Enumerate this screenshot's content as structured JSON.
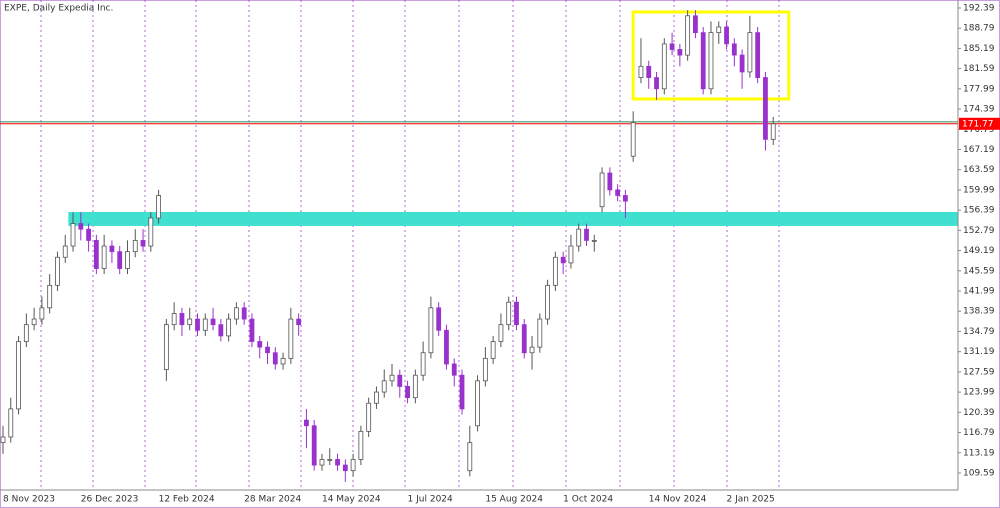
{
  "chart_data": {
    "type": "candlestick",
    "title": "EXPE, Daily  Expedia Inc.",
    "up_color": "#555555",
    "down_color": "#9932cc",
    "categories": [
      "8 Nov 2023",
      null,
      null,
      null,
      null,
      null,
      null,
      null,
      null,
      null,
      "26 Dec 2023",
      null,
      null,
      null,
      null,
      null,
      null,
      null,
      null,
      null,
      "12 Feb 2024",
      null,
      null,
      null,
      null,
      null,
      null,
      null,
      null,
      null,
      null,
      "28 Mar 2024",
      null,
      null,
      null,
      null,
      null,
      null,
      null,
      null,
      null,
      "14 May 2024",
      null,
      null,
      null,
      null,
      null,
      null,
      null,
      null,
      null,
      null,
      "1 Jul 2024",
      null,
      null,
      null,
      null,
      null,
      null,
      null,
      null,
      null,
      "15 Aug 2024",
      null,
      null,
      null,
      null,
      null,
      null,
      null,
      null,
      null,
      "1 Oct 2024",
      null,
      null,
      null,
      null,
      null,
      null,
      null,
      null,
      null,
      null,
      "14 Nov 2024",
      null,
      null,
      null,
      null,
      null,
      null,
      null,
      null,
      null,
      "2 Jan 2025",
      null,
      null,
      null,
      null,
      null,
      null
    ],
    "open": [
      115,
      116,
      121,
      133,
      136,
      137,
      139,
      143,
      148,
      150,
      154,
      153,
      151,
      146,
      150,
      149,
      146,
      149,
      151,
      150,
      155,
      128,
      136,
      138,
      136,
      137,
      135,
      137,
      136,
      134,
      137,
      139,
      137,
      133,
      132,
      131,
      129,
      130,
      137,
      119,
      118,
      111,
      112,
      112,
      111,
      110,
      112,
      117,
      122,
      124,
      126,
      127,
      125,
      123,
      127,
      131,
      139,
      135,
      129,
      127,
      110,
      118,
      126,
      130,
      133,
      136,
      140,
      136,
      131,
      132,
      137,
      143,
      148,
      147,
      150,
      153,
      151,
      157,
      163,
      160,
      159,
      166,
      180,
      182,
      180,
      178,
      186,
      185,
      184,
      191,
      188,
      178,
      188,
      189,
      186,
      184,
      181,
      188,
      180,
      169
    ],
    "high": [
      118,
      123,
      134,
      138,
      139,
      141,
      145,
      149,
      152,
      156,
      156,
      154,
      152,
      152,
      151,
      150,
      151,
      153,
      153,
      156,
      160,
      137,
      140,
      139,
      139,
      138,
      138,
      139,
      137,
      138,
      140,
      140,
      138,
      134,
      133,
      132,
      131,
      139,
      138,
      121,
      119,
      113,
      114,
      113,
      112,
      113,
      118,
      123,
      125,
      128,
      129,
      128,
      126,
      128,
      133,
      141,
      140,
      136,
      130,
      128,
      118,
      127,
      132,
      134,
      138,
      141,
      141,
      137,
      134,
      138,
      144,
      149,
      149,
      152,
      154,
      154,
      152,
      164,
      164,
      161,
      160,
      174,
      187,
      183,
      181,
      187,
      188,
      186,
      192,
      192,
      189,
      190,
      190,
      190,
      187,
      185,
      191,
      189,
      181,
      173
    ],
    "low": [
      113,
      115,
      120,
      132,
      135,
      136,
      138,
      142,
      147,
      149,
      151,
      149,
      145,
      145,
      147,
      145,
      145,
      148,
      149,
      149,
      154,
      126,
      135,
      134,
      135,
      134,
      134,
      135,
      133,
      133,
      136,
      136,
      132,
      130,
      129,
      128,
      128,
      129,
      134,
      114,
      110,
      110,
      111,
      110,
      108,
      109,
      111,
      116,
      121,
      123,
      125,
      123,
      122,
      122,
      126,
      130,
      134,
      128,
      125,
      120,
      109,
      117,
      125,
      129,
      132,
      135,
      135,
      130,
      128,
      131,
      136,
      142,
      145,
      146,
      149,
      150,
      149,
      156,
      159,
      158,
      155,
      165,
      179,
      178,
      176,
      177,
      184,
      182,
      183,
      187,
      177,
      177,
      186,
      185,
      182,
      178,
      180,
      179,
      167,
      168
    ],
    "close": [
      116,
      121,
      133,
      136,
      137,
      139,
      143,
      148,
      150,
      154,
      153,
      151,
      146,
      150,
      149,
      146,
      149,
      151,
      150,
      155,
      159,
      136,
      138,
      136,
      137,
      135,
      137,
      136,
      134,
      137,
      139,
      137,
      133,
      132,
      131,
      129,
      130,
      137,
      136,
      118,
      111,
      112,
      112,
      111,
      110,
      112,
      117,
      122,
      124,
      126,
      127,
      125,
      123,
      127,
      131,
      139,
      135,
      129,
      127,
      121,
      115,
      126,
      130,
      133,
      136,
      140,
      136,
      131,
      132,
      137,
      143,
      148,
      147,
      150,
      153,
      151,
      151,
      163,
      160,
      159,
      158,
      172,
      182,
      180,
      178,
      186,
      185,
      184,
      191,
      188,
      178,
      188,
      189,
      186,
      184,
      181,
      188,
      180,
      169,
      171.77
    ],
    "ylim": [
      106.56,
      193.81
    ],
    "yticks": [
      192.39,
      188.79,
      185.19,
      181.59,
      177.99,
      174.39,
      170.79,
      167.19,
      163.59,
      159.99,
      156.39,
      152.79,
      149.19,
      145.59,
      141.99,
      138.39,
      134.79,
      131.19,
      127.59,
      123.99,
      120.39,
      116.79,
      113.19,
      109.59
    ],
    "last_price": 171.77,
    "last_price_color": "#ff0000",
    "ask_price": 172.1,
    "ask_color": "#2e8b57",
    "zones": [
      {
        "color": "#40e0d0",
        "ylim": [
          153.58,
          156.07
        ],
        "from": 8.4,
        "filled": true
      },
      {
        "color": "#ffff00",
        "ylim": [
          176.19,
          191.68
        ],
        "from": 81,
        "to": 101,
        "filled": false
      }
    ]
  }
}
